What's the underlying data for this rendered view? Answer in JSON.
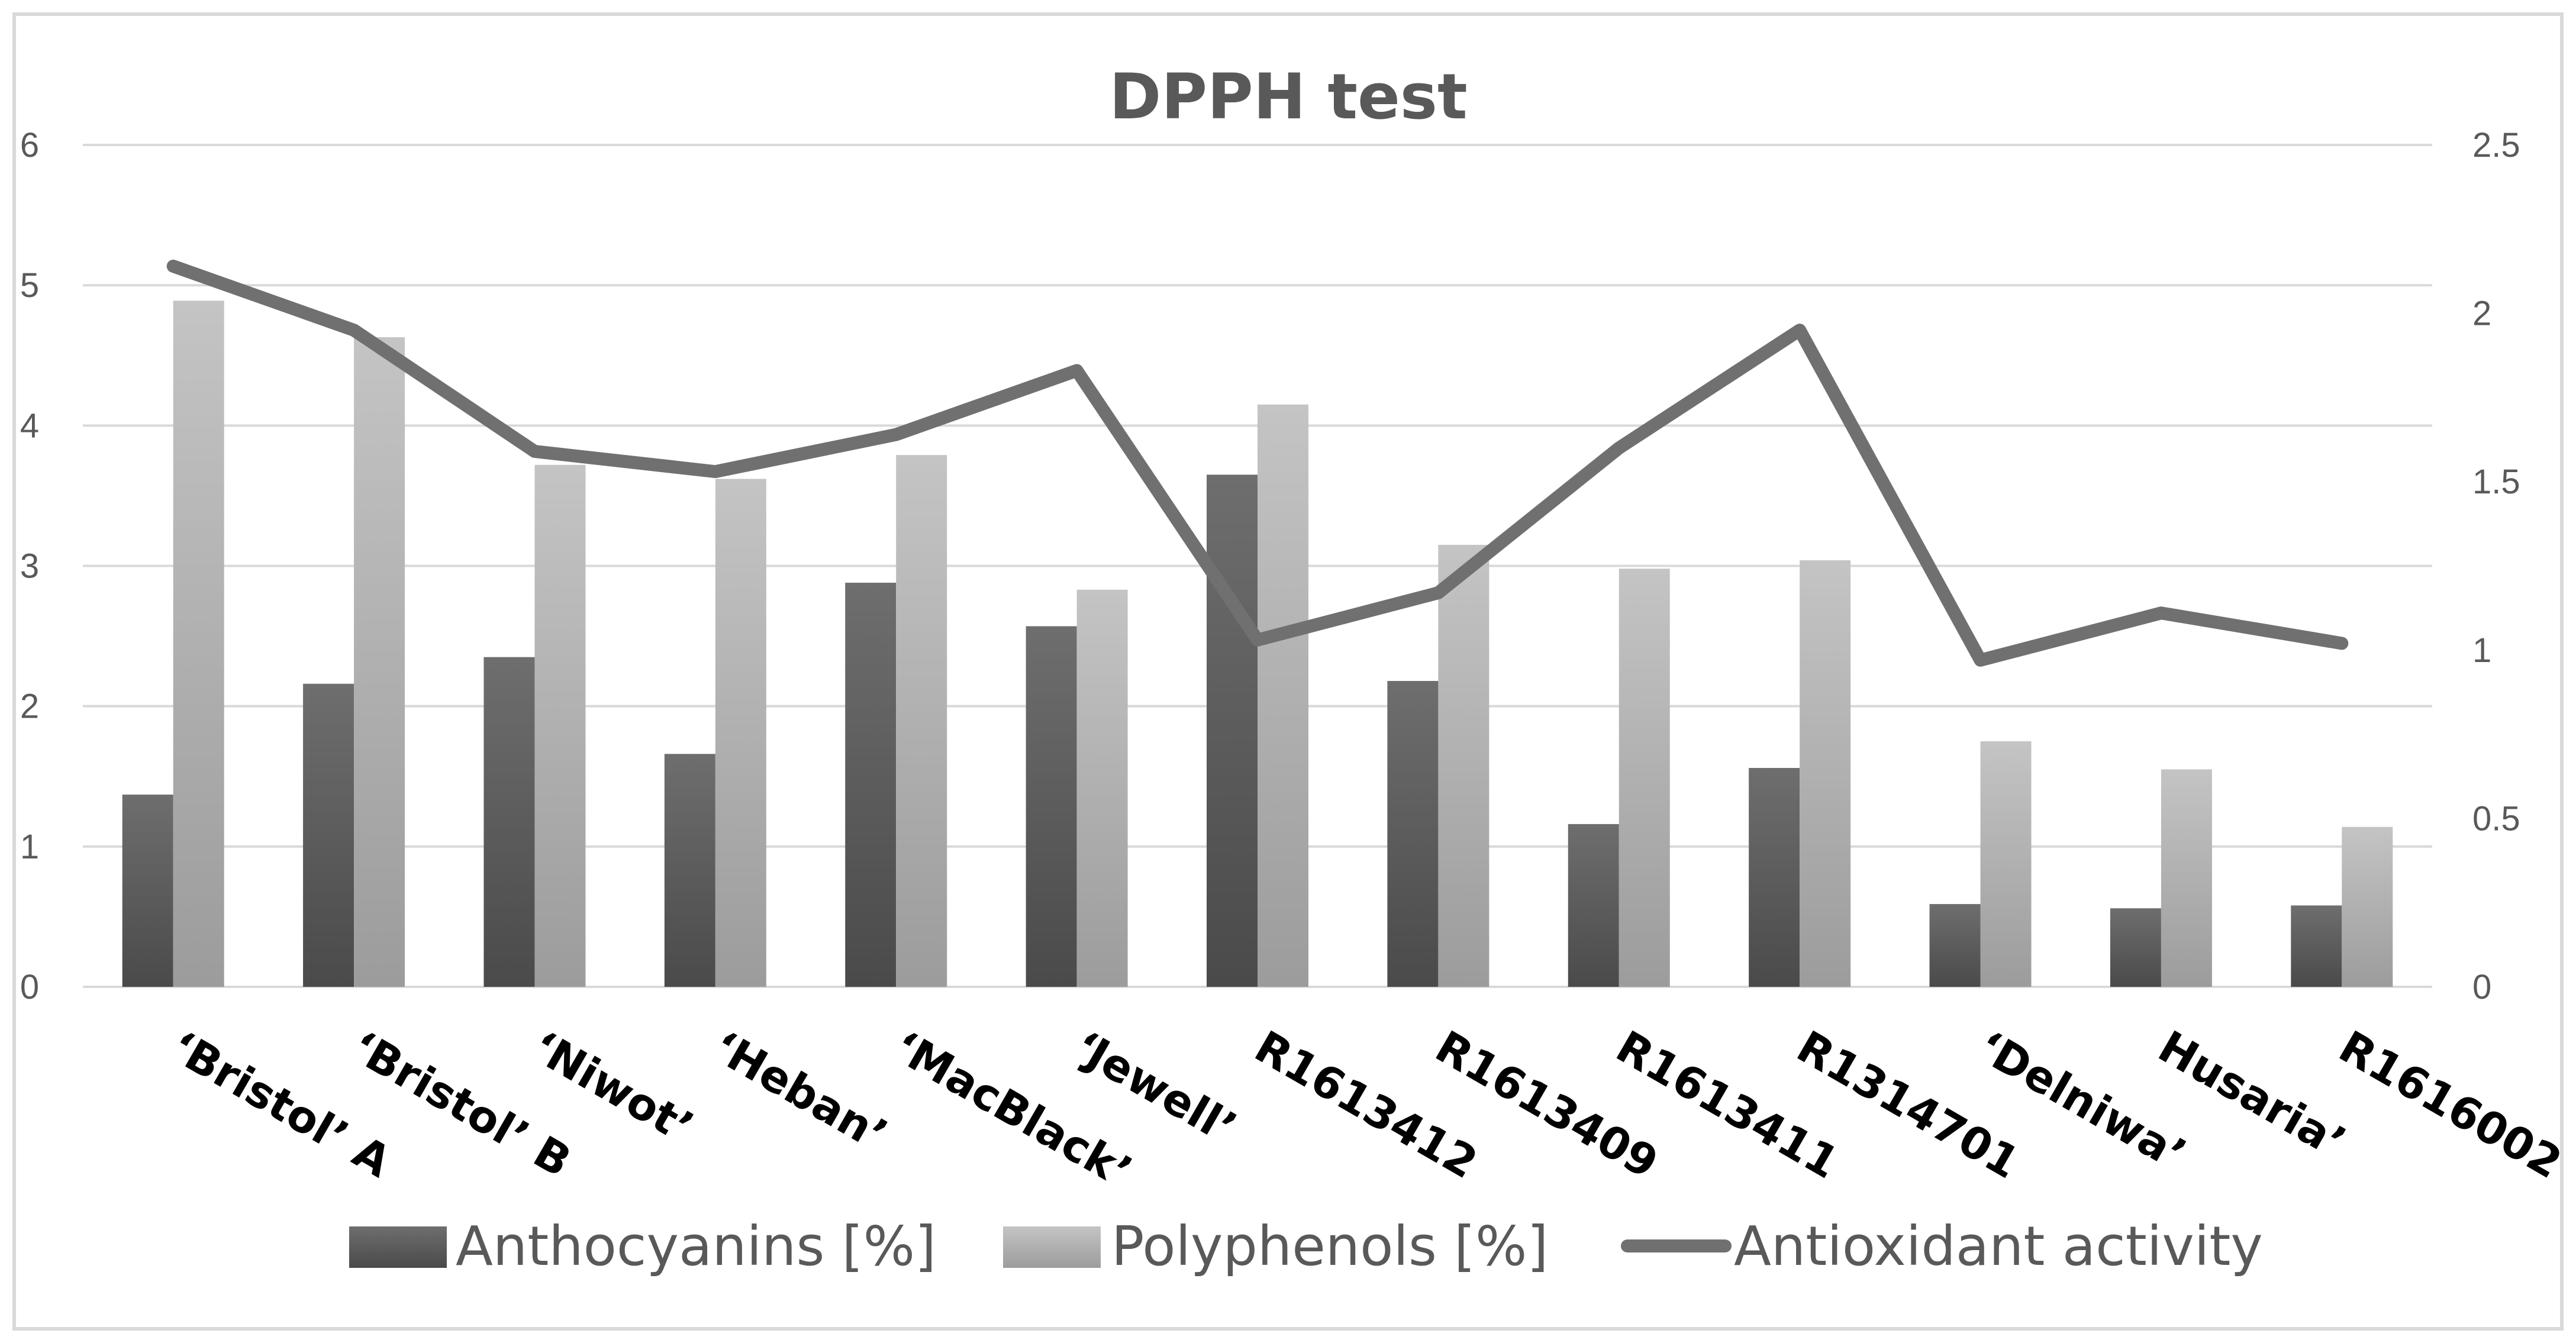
{
  "chart_data": {
    "type": "bar",
    "title": "DPPH test",
    "categories": [
      "‘Bristol’ A",
      "‘Bristol’ B",
      "‘Niwot’",
      "‘Heban’",
      "‘MacBlack’",
      "‘Jewell’",
      "R1613412",
      "R1613409",
      "R1613411",
      "R1314701",
      "‘Delniwa’",
      "Husaria’",
      "R1616002"
    ],
    "series": [
      {
        "name": "Anthocyanins [%]",
        "type": "bar",
        "axis": "left",
        "color": "#606060",
        "values": [
          1.37,
          2.16,
          2.35,
          1.66,
          2.88,
          2.57,
          3.65,
          2.18,
          1.16,
          1.56,
          0.59,
          0.56,
          0.58
        ]
      },
      {
        "name": "Polyphenols [%]",
        "type": "bar",
        "axis": "left",
        "color": "#b4b4b4",
        "values": [
          4.89,
          4.63,
          3.72,
          3.62,
          3.79,
          2.83,
          4.15,
          3.15,
          2.98,
          3.04,
          1.75,
          1.55,
          1.14
        ]
      },
      {
        "name": "Antioxidant activity",
        "type": "line",
        "axis": "right",
        "color": "#707070",
        "values": [
          2.14,
          1.95,
          1.59,
          1.53,
          1.64,
          1.83,
          1.03,
          1.17,
          1.6,
          1.95,
          0.97,
          1.11,
          1.02
        ]
      }
    ],
    "y_left": {
      "min": 0,
      "max": 6,
      "ticks": [
        "0",
        "1",
        "2",
        "3",
        "4",
        "5",
        "6"
      ]
    },
    "y_right": {
      "min": 0,
      "max": 2.5,
      "ticks": [
        "0",
        "0.5",
        "1",
        "1.5",
        "2",
        "2.5"
      ]
    },
    "grid": true,
    "legend_position": "bottom"
  }
}
